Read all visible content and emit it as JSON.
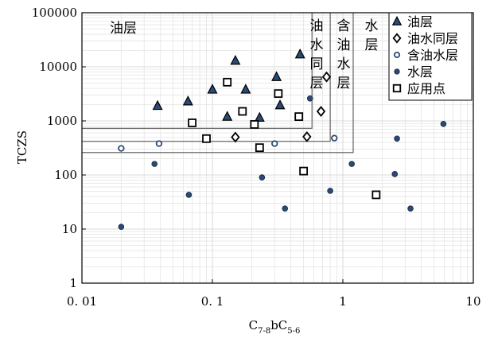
{
  "chart_data": {
    "type": "scatter",
    "xscale": "log",
    "yscale": "log",
    "xlim": [
      0.01,
      10
    ],
    "ylim": [
      1,
      100000
    ],
    "xlabel": "C7-8bC5-6",
    "xlabel_parts": {
      "c1": "C",
      "s1": "7-8",
      "mid": "bC",
      "s2": "5-6"
    },
    "ylabel": "TCZS",
    "x_ticks": [
      {
        "value": 0.01,
        "label": "0. 01"
      },
      {
        "value": 0.1,
        "label": "0. 1"
      },
      {
        "value": 1,
        "label": "1"
      },
      {
        "value": 10,
        "label": "10"
      }
    ],
    "y_ticks": [
      {
        "value": 1,
        "label": "1"
      },
      {
        "value": 10,
        "label": "10"
      },
      {
        "value": 100,
        "label": "100"
      },
      {
        "value": 1000,
        "label": "1000"
      },
      {
        "value": 10000,
        "label": "10000"
      },
      {
        "value": 100000,
        "label": "100000"
      }
    ],
    "grid": true,
    "legend_position": "top-right",
    "zones": [
      {
        "label": "油层",
        "x_max": 0.58,
        "y_min": 730
      },
      {
        "label": "油水同层",
        "x_max": 0.8,
        "y_min": 420
      },
      {
        "label": "含油水层",
        "x_max": 1.2,
        "y_min": 260
      }
    ],
    "zone_labels": [
      {
        "id": "oil",
        "text": "油层"
      },
      {
        "id": "oil-water",
        "text": "油水同层"
      },
      {
        "id": "oil-bearing-water",
        "text": "含油水层"
      },
      {
        "id": "water",
        "text": "水层"
      }
    ],
    "series": [
      {
        "name": "油层",
        "marker": "triangle",
        "color": "#2b4a73",
        "points": [
          [
            0.038,
            1900
          ],
          [
            0.065,
            2300
          ],
          [
            0.1,
            3800
          ],
          [
            0.13,
            1200
          ],
          [
            0.15,
            13000
          ],
          [
            0.18,
            3800
          ],
          [
            0.23,
            1150
          ],
          [
            0.31,
            6500
          ],
          [
            0.33,
            1950
          ],
          [
            0.47,
            17000
          ]
        ]
      },
      {
        "name": "油水同层",
        "marker": "diamond",
        "color": "#000000",
        "points": [
          [
            0.15,
            500
          ],
          [
            0.53,
            510
          ],
          [
            0.68,
            1500
          ],
          [
            0.75,
            6500
          ]
        ]
      },
      {
        "name": "含油水层",
        "marker": "ring",
        "color": "#2b4a73",
        "points": [
          [
            0.02,
            310
          ],
          [
            0.039,
            380
          ],
          [
            0.3,
            380
          ],
          [
            0.86,
            480
          ]
        ]
      },
      {
        "name": "水层",
        "marker": "dot",
        "color": "#2b4a73",
        "points": [
          [
            0.02,
            11
          ],
          [
            0.036,
            160
          ],
          [
            0.066,
            43
          ],
          [
            0.24,
            90
          ],
          [
            0.36,
            24
          ],
          [
            0.56,
            2600
          ],
          [
            0.8,
            51
          ],
          [
            1.17,
            160
          ],
          [
            2.5,
            104
          ],
          [
            2.6,
            470
          ],
          [
            3.3,
            24
          ],
          [
            5.9,
            880
          ]
        ]
      },
      {
        "name": "应用点",
        "marker": "square",
        "color": "#000000",
        "points": [
          [
            0.07,
            920
          ],
          [
            0.09,
            470
          ],
          [
            0.13,
            5200
          ],
          [
            0.17,
            1500
          ],
          [
            0.21,
            860
          ],
          [
            0.23,
            320
          ],
          [
            0.32,
            3200
          ],
          [
            0.46,
            1200
          ],
          [
            0.5,
            118
          ],
          [
            1.8,
            43
          ]
        ]
      }
    ]
  }
}
